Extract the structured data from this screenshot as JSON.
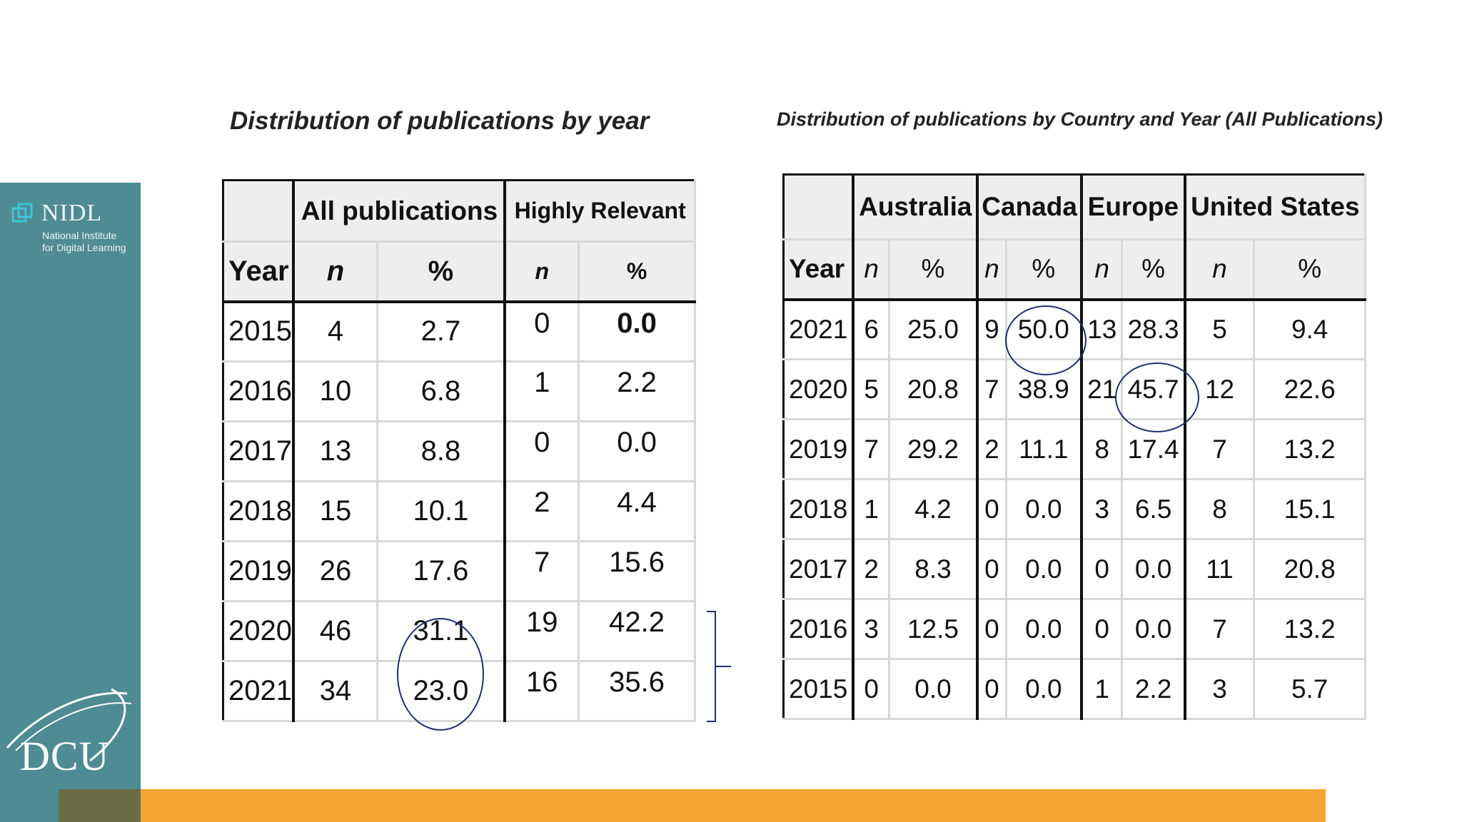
{
  "branding": {
    "nidl_name": "NIDL",
    "nidl_subtitle_line1": "National Institute",
    "nidl_subtitle_line2": "for Digital Learning",
    "dcu_name": "DCU",
    "sidebar_color": "#4e8b93",
    "accent_color": "#f5a534"
  },
  "left_table": {
    "title": "Distribution of publications by year",
    "group_all": "All publications",
    "group_relevant": "Highly Relevant",
    "col_year": "Year",
    "col_n": "n",
    "col_pct": "%",
    "rows": [
      {
        "year": "2015",
        "all_n": "4",
        "all_pct": "2.7",
        "rel_n": "0",
        "rel_pct": "0.0"
      },
      {
        "year": "2016",
        "all_n": "10",
        "all_pct": "6.8",
        "rel_n": "1",
        "rel_pct": "2.2"
      },
      {
        "year": "2017",
        "all_n": "13",
        "all_pct": "8.8",
        "rel_n": "0",
        "rel_pct": "0.0"
      },
      {
        "year": "2018",
        "all_n": "15",
        "all_pct": "10.1",
        "rel_n": "2",
        "rel_pct": "4.4"
      },
      {
        "year": "2019",
        "all_n": "26",
        "all_pct": "17.6",
        "rel_n": "7",
        "rel_pct": "15.6"
      },
      {
        "year": "2020",
        "all_n": "46",
        "all_pct": "31.1",
        "rel_n": "19",
        "rel_pct": "42.2"
      },
      {
        "year": "2021",
        "all_n": "34",
        "all_pct": "23.0",
        "rel_n": "16",
        "rel_pct": "35.6"
      }
    ]
  },
  "right_table": {
    "title": "Distribution of publications by Country and Year (All Publications)",
    "col_year": "Year",
    "col_n": "n",
    "col_pct": "%",
    "countries": [
      "Australia",
      "Canada",
      "Europe",
      "United States"
    ],
    "rows": [
      {
        "year": "2021",
        "au_n": "6",
        "au_pct": "25.0",
        "ca_n": "9",
        "ca_pct": "50.0",
        "eu_n": "13",
        "eu_pct": "28.3",
        "us_n": "5",
        "us_pct": "9.4"
      },
      {
        "year": "2020",
        "au_n": "5",
        "au_pct": "20.8",
        "ca_n": "7",
        "ca_pct": "38.9",
        "eu_n": "21",
        "eu_pct": "45.7",
        "us_n": "12",
        "us_pct": "22.6"
      },
      {
        "year": "2019",
        "au_n": "7",
        "au_pct": "29.2",
        "ca_n": "2",
        "ca_pct": "11.1",
        "eu_n": "8",
        "eu_pct": "17.4",
        "us_n": "7",
        "us_pct": "13.2"
      },
      {
        "year": "2018",
        "au_n": "1",
        "au_pct": "4.2",
        "ca_n": "0",
        "ca_pct": "0.0",
        "eu_n": "3",
        "eu_pct": "6.5",
        "us_n": "8",
        "us_pct": "15.1"
      },
      {
        "year": "2017",
        "au_n": "2",
        "au_pct": "8.3",
        "ca_n": "0",
        "ca_pct": "0.0",
        "eu_n": "0",
        "eu_pct": "0.0",
        "us_n": "11",
        "us_pct": "20.8"
      },
      {
        "year": "2016",
        "au_n": "3",
        "au_pct": "12.5",
        "ca_n": "0",
        "ca_pct": "0.0",
        "eu_n": "0",
        "eu_pct": "0.0",
        "us_n": "7",
        "us_pct": "13.2"
      },
      {
        "year": "2015",
        "au_n": "0",
        "au_pct": "0.0",
        "ca_n": "0",
        "ca_pct": "0.0",
        "eu_n": "1",
        "eu_pct": "2.2",
        "us_n": "3",
        "us_pct": "5.7"
      }
    ]
  }
}
